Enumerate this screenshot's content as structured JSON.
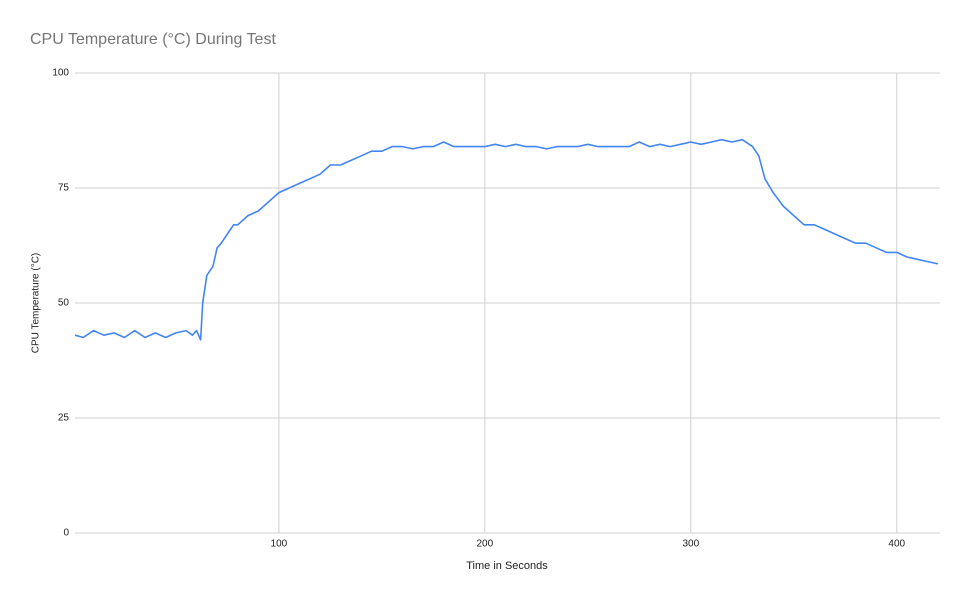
{
  "chart_data": {
    "type": "line",
    "title": "CPU Temperature (°C) During Test",
    "x_label": "Time in Seconds",
    "y_label": "CPU Temperature (°C)",
    "x": [
      1,
      5,
      10,
      15,
      20,
      25,
      30,
      35,
      40,
      45,
      50,
      55,
      58,
      60,
      62,
      63,
      65,
      68,
      70,
      72,
      75,
      78,
      80,
      85,
      90,
      95,
      100,
      105,
      110,
      115,
      120,
      125,
      130,
      135,
      140,
      145,
      150,
      155,
      160,
      165,
      170,
      175,
      180,
      185,
      190,
      195,
      200,
      205,
      210,
      215,
      220,
      225,
      230,
      235,
      240,
      245,
      250,
      255,
      260,
      265,
      270,
      275,
      280,
      285,
      290,
      295,
      300,
      305,
      310,
      315,
      320,
      325,
      330,
      333,
      336,
      340,
      345,
      350,
      355,
      360,
      365,
      370,
      375,
      380,
      385,
      390,
      395,
      400,
      405,
      410,
      415,
      420
    ],
    "series": [
      {
        "name": "CPU Temperature (°C)",
        "color": "#4285f4",
        "values": [
          43,
          42.5,
          44,
          43,
          43.5,
          42.5,
          44,
          42.5,
          43.5,
          42.5,
          43.5,
          44,
          43,
          44,
          42,
          50,
          56,
          58,
          62,
          63,
          65,
          67,
          67,
          69,
          70,
          72,
          74,
          75,
          76,
          77,
          78,
          80,
          80,
          81,
          82,
          83,
          83,
          84,
          84,
          83.5,
          84,
          84,
          85,
          84,
          84,
          84,
          84,
          84.5,
          84,
          84.5,
          84,
          84,
          83.5,
          84,
          84,
          84,
          84.5,
          84,
          84,
          84,
          84,
          85,
          84,
          84.5,
          84,
          84.5,
          85,
          84.5,
          85,
          85.5,
          85,
          85.5,
          84,
          82,
          77,
          74,
          71,
          69,
          67,
          67,
          66,
          65,
          64,
          63,
          63,
          62,
          61,
          61,
          60,
          59.5,
          59,
          58.5
        ]
      }
    ],
    "xlim": [
      1,
      421
    ],
    "ylim": [
      0,
      100
    ],
    "xticks": [
      100,
      200,
      300,
      400
    ],
    "yticks": [
      0,
      25,
      50,
      75,
      100
    ],
    "grid": true
  }
}
